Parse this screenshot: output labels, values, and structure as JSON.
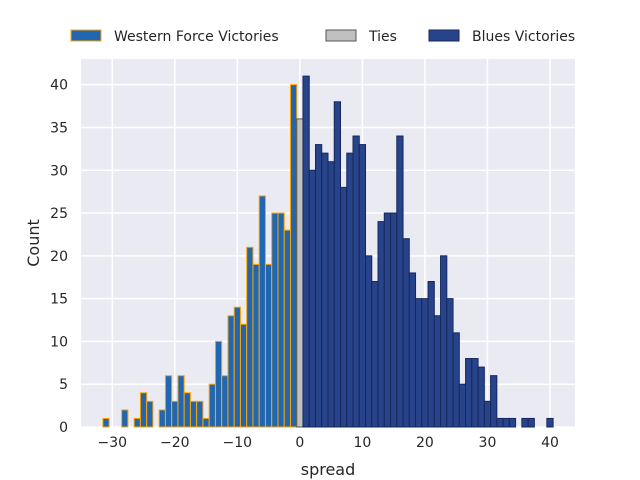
{
  "chart_data": {
    "type": "bar",
    "title": "",
    "xlabel": "spread",
    "ylabel": "Count",
    "xlim": [
      -35,
      44
    ],
    "ylim": [
      0,
      43
    ],
    "xticks": [
      -30,
      -20,
      -10,
      0,
      10,
      20,
      30,
      40
    ],
    "yticks": [
      0,
      5,
      10,
      15,
      20,
      25,
      30,
      35,
      40
    ],
    "xtick_labels": [
      "−30",
      "−20",
      "−10",
      "0",
      "10",
      "20",
      "30",
      "40"
    ],
    "ytick_labels": [
      "0",
      "5",
      "10",
      "15",
      "20",
      "25",
      "30",
      "35",
      "40"
    ],
    "grid": true,
    "legend_placement": "top (outside, above plot)",
    "bin_width": 1,
    "series": [
      {
        "name": "Western Force Victories",
        "color": "#2166b0",
        "edge_color": "#ffa500",
        "x": [
          -31,
          -28,
          -26,
          -25,
          -24,
          -22,
          -21,
          -20,
          -19,
          -18,
          -17,
          -16,
          -15,
          -14,
          -13,
          -12,
          -11,
          -10,
          -9,
          -8,
          -7,
          -6,
          -5,
          -4,
          -3,
          -2,
          -1
        ],
        "values": [
          1,
          2,
          1,
          4,
          3,
          2,
          6,
          3,
          6,
          4,
          3,
          3,
          1,
          5,
          10,
          6,
          13,
          14,
          12,
          21,
          19,
          27,
          19,
          25,
          25,
          23,
          40
        ]
      },
      {
        "name": "Ties",
        "color": "#c0c0c0",
        "edge_color": "#555555",
        "x": [
          0
        ],
        "values": [
          36
        ]
      },
      {
        "name": "Blues Victories",
        "color": "#27448b",
        "edge_color": "#16275e",
        "x": [
          1,
          2,
          3,
          4,
          5,
          6,
          7,
          8,
          9,
          10,
          11,
          12,
          13,
          14,
          15,
          16,
          17,
          18,
          19,
          20,
          21,
          22,
          23,
          24,
          25,
          26,
          27,
          28,
          29,
          30,
          31,
          32,
          33,
          34,
          36,
          37,
          40
        ],
        "values": [
          41,
          30,
          33,
          32,
          31,
          38,
          28,
          32,
          34,
          33,
          20,
          17,
          24,
          25,
          25,
          34,
          22,
          18,
          15,
          15,
          17,
          13,
          20,
          15,
          11,
          5,
          8,
          8,
          7,
          3,
          6,
          1,
          1,
          1,
          1,
          1,
          1
        ]
      }
    ]
  }
}
